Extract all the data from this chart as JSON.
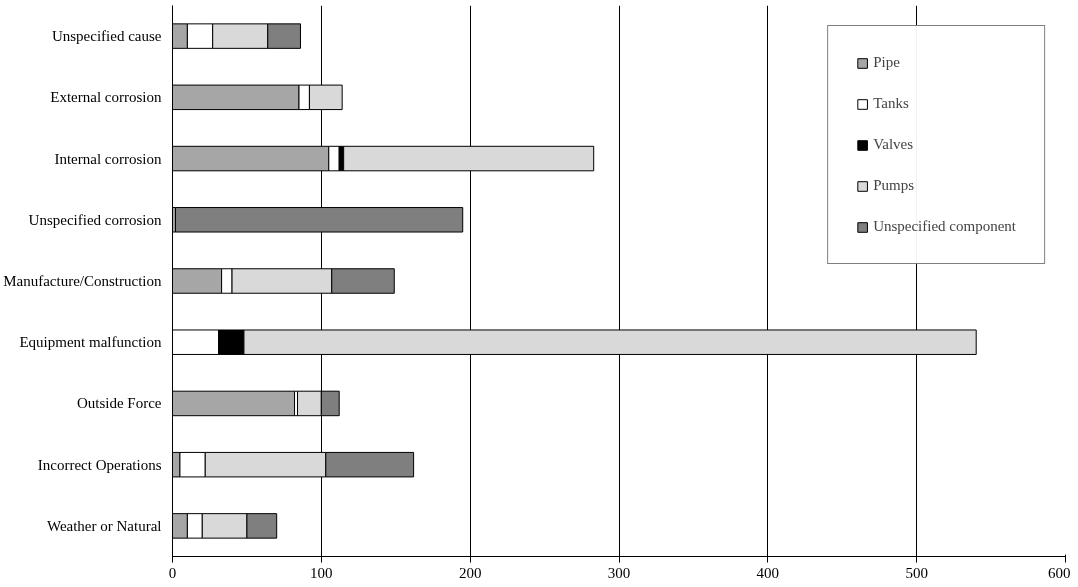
{
  "chart_data": {
    "type": "bar",
    "orientation": "horizontal",
    "stacked": true,
    "categories": [
      "Unspecified cause",
      "External corrosion",
      "Internal corrosion",
      "Unspecified corrosion",
      "Manufacture/Construction",
      "Equipment malfunction",
      "Outside Force",
      "Incorrect Operations",
      "Weather or Natural"
    ],
    "series": [
      {
        "name": "Pipe",
        "color": "#a6a6a6",
        "values": [
          10,
          85,
          105,
          2,
          33,
          null,
          82,
          5,
          10
        ]
      },
      {
        "name": "Tanks",
        "color": "#ffffff",
        "values": [
          17,
          7,
          7,
          null,
          7,
          31,
          2,
          17,
          10
        ]
      },
      {
        "name": "Valves",
        "color": "#000000",
        "values": [
          null,
          null,
          3,
          null,
          null,
          17,
          null,
          null,
          null
        ]
      },
      {
        "name": "Pumps",
        "color": "#d9d9d9",
        "values": [
          37,
          22,
          168,
          null,
          67,
          492,
          16,
          81,
          30
        ]
      },
      {
        "name": "Unspecified component",
        "color": "#7f7f7f",
        "values": [
          22,
          null,
          null,
          193,
          42,
          null,
          12,
          59,
          20
        ]
      }
    ],
    "xlim": [
      0,
      600
    ],
    "xticks": [
      0,
      100,
      200,
      300,
      400,
      500,
      600
    ],
    "grid": "x",
    "legend": "top right"
  }
}
